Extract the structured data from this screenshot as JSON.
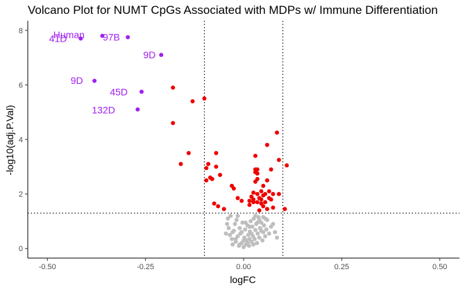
{
  "chart_data": {
    "type": "scatter",
    "title": "Volcano Plot for NUMT CpGs Associated with MDPs w/ Immune Differentiation",
    "xlabel": "logFC",
    "ylabel": "-log10(adj.P.Val)",
    "xlim": [
      -0.55,
      0.55
    ],
    "ylim": [
      -0.35,
      8.35
    ],
    "x_ticks": [
      -0.5,
      -0.25,
      0.0,
      0.25,
      0.5
    ],
    "x_tick_labels": [
      "-0.50",
      "-0.25",
      "0.00",
      "0.25",
      "0.50"
    ],
    "y_ticks": [
      0,
      2,
      4,
      6,
      8
    ],
    "y_tick_labels": [
      "0",
      "2",
      "4",
      "6",
      "8"
    ],
    "grid": false,
    "legend": "none",
    "reference_lines": {
      "vertical": [
        -0.1,
        0.1
      ],
      "horizontal": [
        1.3
      ],
      "style": "dotted"
    },
    "colors": {
      "not_significant": "#bebebe",
      "significant": "#ee0000",
      "labeled": "#a020f0",
      "reference_line": "#000000",
      "axis": "#000000"
    },
    "series": [
      {
        "points": [
          [
            -0.035,
            0.5
          ],
          [
            -0.03,
            0.35
          ],
          [
            -0.028,
            0.15
          ],
          [
            -0.025,
            0.65
          ],
          [
            -0.022,
            0.9
          ],
          [
            -0.02,
            0.25
          ],
          [
            -0.018,
            1.05
          ],
          [
            -0.015,
            0.45
          ],
          [
            -0.012,
            0.1
          ],
          [
            -0.01,
            0.75
          ],
          [
            -0.008,
            0.55
          ],
          [
            -0.005,
            0.2
          ],
          [
            -0.003,
            0.95
          ],
          [
            0.0,
            0.05
          ],
          [
            0.002,
            0.4
          ],
          [
            0.004,
            0.7
          ],
          [
            0.006,
            0.15
          ],
          [
            0.008,
            0.3
          ],
          [
            0.01,
            0.85
          ],
          [
            0.012,
            0.5
          ],
          [
            0.014,
            0.1
          ],
          [
            0.016,
            0.62
          ],
          [
            0.018,
            1.0
          ],
          [
            0.02,
            0.25
          ],
          [
            0.022,
            0.8
          ],
          [
            0.024,
            0.45
          ],
          [
            0.026,
            1.1
          ],
          [
            0.028,
            0.35
          ],
          [
            0.03,
            0.68
          ],
          [
            0.032,
            0.9
          ],
          [
            0.034,
            0.2
          ],
          [
            0.036,
            0.55
          ],
          [
            0.038,
            1.15
          ],
          [
            0.04,
            0.4
          ],
          [
            0.042,
            0.75
          ],
          [
            0.045,
            0.95
          ],
          [
            0.048,
            0.3
          ],
          [
            0.05,
            0.6
          ],
          [
            0.052,
            0.85
          ],
          [
            0.055,
            0.45
          ],
          [
            0.058,
            0.7
          ],
          [
            0.06,
            1.05
          ],
          [
            0.065,
            0.55
          ],
          [
            0.07,
            0.8
          ],
          [
            0.075,
            0.9
          ],
          [
            0.08,
            0.6
          ],
          [
            0.085,
            0.4
          ],
          [
            -0.04,
            1.1
          ],
          [
            -0.038,
            0.75
          ],
          [
            -0.042,
            0.9
          ],
          [
            -0.045,
            0.55
          ],
          [
            -0.033,
            1.2
          ],
          [
            -0.028,
            0.6
          ],
          [
            -0.015,
            1.2
          ],
          [
            -0.005,
            0.6
          ],
          [
            0.005,
            0.95
          ],
          [
            0.015,
            0.8
          ],
          [
            0.02,
            0.55
          ],
          [
            0.025,
            0.15
          ],
          [
            0.03,
            1.2
          ],
          [
            0.035,
            0.95
          ],
          [
            0.04,
            1.05
          ],
          [
            0.045,
            0.65
          ],
          [
            0.05,
            1.15
          ],
          [
            0.055,
            1.1
          ],
          [
            -0.02,
            0.35
          ],
          [
            -0.01,
            0.15
          ],
          [
            0.0,
            0.3
          ],
          [
            0.01,
            0.2
          ],
          [
            0.015,
            0.35
          ]
        ]
      },
      {
        "points": [
          [
            -0.18,
            5.9
          ],
          [
            -0.13,
            5.4
          ],
          [
            -0.1,
            5.5
          ],
          [
            -0.18,
            4.6
          ],
          [
            -0.14,
            3.5
          ],
          [
            -0.16,
            3.1
          ],
          [
            -0.07,
            3.5
          ],
          [
            -0.09,
            3.1
          ],
          [
            -0.095,
            2.95
          ],
          [
            -0.07,
            3.0
          ],
          [
            -0.085,
            2.6
          ],
          [
            -0.08,
            2.55
          ],
          [
            -0.06,
            2.7
          ],
          [
            -0.095,
            2.5
          ],
          [
            -0.03,
            2.3
          ],
          [
            -0.025,
            2.2
          ],
          [
            -0.075,
            1.65
          ],
          [
            -0.065,
            1.55
          ],
          [
            -0.05,
            1.45
          ],
          [
            -0.015,
            1.85
          ],
          [
            -0.005,
            1.75
          ],
          [
            0.015,
            1.75
          ],
          [
            0.025,
            1.7
          ],
          [
            0.035,
            1.7
          ],
          [
            0.045,
            1.65
          ],
          [
            0.055,
            1.7
          ],
          [
            0.04,
            1.4
          ],
          [
            0.06,
            1.45
          ],
          [
            0.075,
            1.5
          ],
          [
            0.105,
            1.45
          ],
          [
            0.03,
            3.4
          ],
          [
            0.03,
            2.9
          ],
          [
            0.035,
            2.9
          ],
          [
            0.03,
            2.8
          ],
          [
            0.035,
            2.75
          ],
          [
            0.035,
            2.55
          ],
          [
            0.03,
            2.45
          ],
          [
            0.05,
            2.3
          ],
          [
            0.06,
            2.5
          ],
          [
            0.045,
            2.1
          ],
          [
            0.055,
            2.0
          ],
          [
            0.035,
            2.0
          ],
          [
            0.065,
            2.1
          ],
          [
            0.075,
            2.0
          ],
          [
            0.09,
            2.0
          ],
          [
            0.06,
            3.8
          ],
          [
            0.085,
            4.25
          ],
          [
            0.09,
            3.25
          ],
          [
            0.07,
            2.9
          ],
          [
            0.11,
            3.05
          ],
          [
            0.02,
            1.9
          ],
          [
            0.025,
            2.05
          ],
          [
            0.04,
            1.85
          ],
          [
            0.05,
            1.95
          ],
          [
            0.065,
            1.85
          ],
          [
            0.025,
            1.8
          ],
          [
            0.045,
            1.8
          ],
          [
            0.07,
            1.8
          ],
          [
            0.015,
            1.6
          ],
          [
            0.05,
            1.55
          ]
        ]
      },
      {
        "points": [
          [
            -0.415,
            7.7
          ],
          [
            -0.36,
            7.8
          ],
          [
            -0.295,
            7.75
          ],
          [
            -0.21,
            7.1
          ],
          [
            -0.38,
            6.15
          ],
          [
            -0.26,
            5.75
          ],
          [
            -0.27,
            5.1
          ]
        ],
        "labels": [
          "41D",
          "Human",
          "97B",
          "9D",
          "9D",
          "45D",
          "132D"
        ],
        "label_anchor_x": [
          -0.473,
          -0.445,
          -0.337,
          -0.24,
          -0.425,
          -0.318,
          -0.357
        ],
        "label_anchor_y": [
          7.58,
          7.72,
          7.62,
          6.97,
          6.03,
          5.61,
          4.95
        ]
      }
    ]
  }
}
